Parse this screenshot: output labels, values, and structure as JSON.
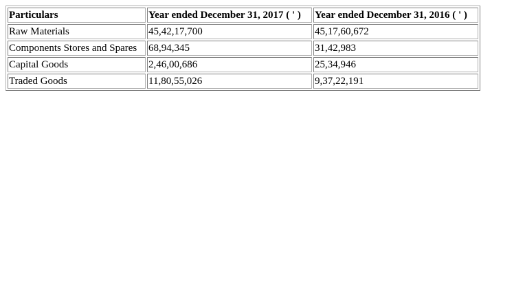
{
  "table": {
    "headers": [
      "Particulars",
      "Year ended December 31, 2017 ( ' )",
      "Year ended December 31, 2016 ( ' )"
    ],
    "rows": [
      [
        "Raw Materials",
        "45,42,17,700",
        "45,17,60,672"
      ],
      [
        "Components Stores and Spares",
        "68,94,345",
        "31,42,983"
      ],
      [
        "Capital Goods",
        "2,46,00,686",
        "25,34,946"
      ],
      [
        "Traded Goods",
        "11,80,55,026",
        "9,37,22,191"
      ]
    ]
  }
}
